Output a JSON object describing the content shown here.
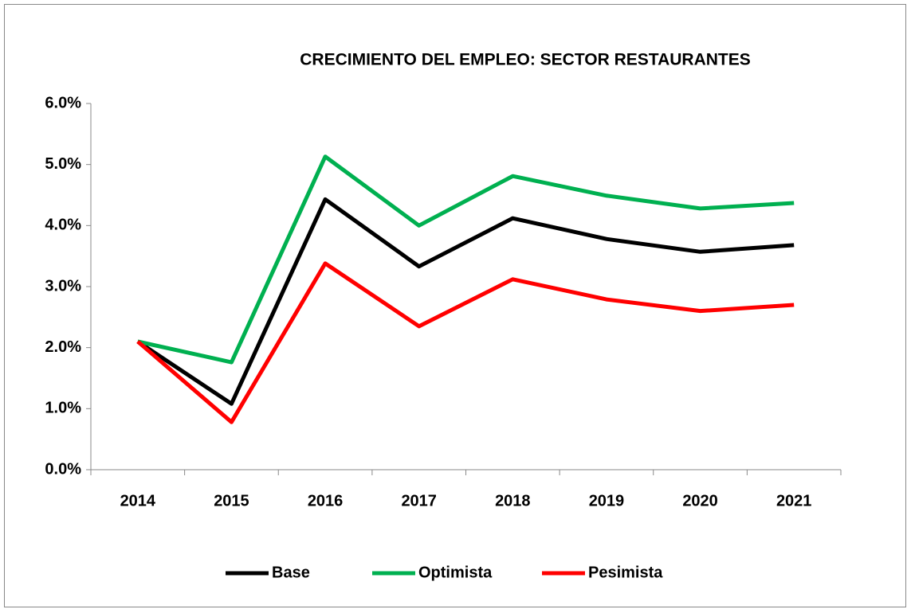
{
  "chart_data": {
    "type": "line",
    "title": "CRECIMIENTO DEL EMPLEO: SECTOR RESTAURANTES",
    "categories": [
      "2014",
      "2015",
      "2016",
      "2017",
      "2018",
      "2019",
      "2020",
      "2021"
    ],
    "series": [
      {
        "name": "Base",
        "color": "#000000",
        "values": [
          2.1,
          1.08,
          4.43,
          3.33,
          4.12,
          3.78,
          3.57,
          3.68
        ]
      },
      {
        "name": "Optimista",
        "color": "#00b050",
        "values": [
          2.1,
          1.76,
          5.13,
          4.0,
          4.81,
          4.49,
          4.28,
          4.37
        ]
      },
      {
        "name": "Pesimista",
        "color": "#ff0000",
        "values": [
          2.1,
          0.78,
          3.38,
          2.35,
          3.12,
          2.79,
          2.6,
          2.7
        ]
      }
    ],
    "ylim": [
      0,
      6
    ],
    "yticks": [
      {
        "value": 0,
        "label": "0.0%"
      },
      {
        "value": 1,
        "label": "1.0%"
      },
      {
        "value": 2,
        "label": "2.0%"
      },
      {
        "value": 3,
        "label": "3.0%"
      },
      {
        "value": 4,
        "label": "4.0%"
      },
      {
        "value": 5,
        "label": "5.0%"
      },
      {
        "value": 6,
        "label": "6.0%"
      }
    ],
    "grid": false,
    "legend": "bottom"
  }
}
